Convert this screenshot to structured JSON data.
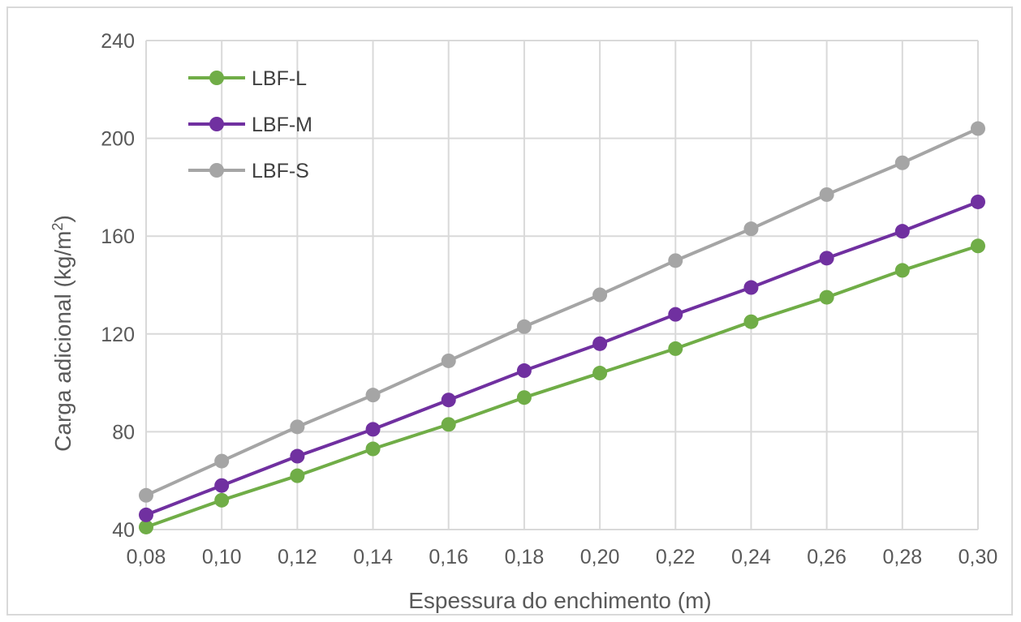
{
  "chart_data": {
    "type": "line",
    "xlabel": "Espessura do enchimento (m)",
    "ylabel_main": "Carga adicional (kg/m",
    "ylabel_sup": "2",
    "ylabel_end": ")",
    "ylim": [
      40,
      240
    ],
    "yticks": [
      40,
      80,
      120,
      160,
      200,
      240
    ],
    "ytick_labels": [
      "40",
      "80",
      "120",
      "160",
      "200",
      "240"
    ],
    "categories": [
      "0,08",
      "0,10",
      "0,12",
      "0,14",
      "0,16",
      "0,18",
      "0,20",
      "0,22",
      "0,24",
      "0,26",
      "0,28",
      "0,30"
    ],
    "grid": true,
    "legend_position": "top-left",
    "series": [
      {
        "name": "LBF-L",
        "color": "#70ad47",
        "values": [
          41,
          52,
          62,
          73,
          83,
          94,
          104,
          114,
          125,
          135,
          146,
          156
        ]
      },
      {
        "name": "LBF-M",
        "color": "#7030a0",
        "values": [
          46,
          58,
          70,
          81,
          93,
          105,
          116,
          128,
          139,
          151,
          162,
          174
        ]
      },
      {
        "name": "LBF-S",
        "color": "#a5a5a5",
        "values": [
          54,
          68,
          82,
          95,
          109,
          123,
          136,
          150,
          163,
          177,
          190,
          204
        ]
      }
    ]
  }
}
